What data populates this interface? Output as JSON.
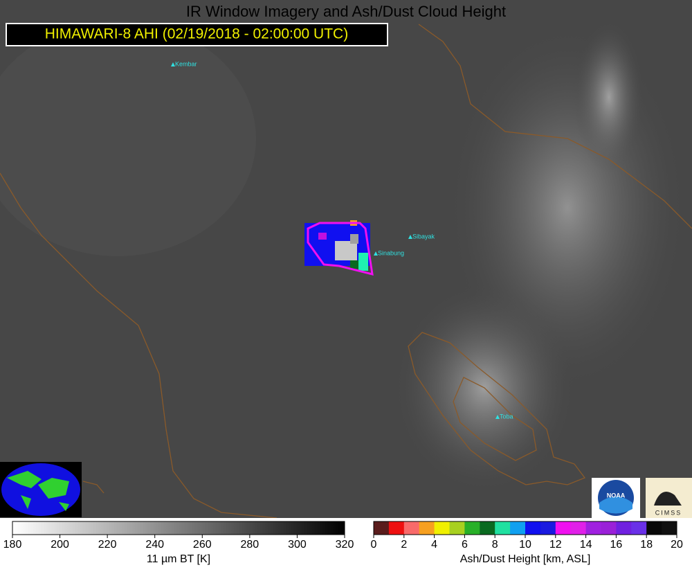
{
  "header": {
    "title": "IR Window Imagery and Ash/Dust Cloud Height",
    "subtitle": "HIMAWARI-8 AHI (02/19/2018 - 02:00:00 UTC)"
  },
  "volcanoes": [
    {
      "label": "Kembar"
    },
    {
      "label": "Sibayak"
    },
    {
      "label": "Sinabung"
    },
    {
      "label": "Toba"
    }
  ],
  "logos": {
    "noaa": "NOAA",
    "cimss": "CIMSS"
  },
  "colorbars": [
    {
      "label": "11 µm BT [K]",
      "ticks": [
        180,
        200,
        220,
        240,
        260,
        280,
        300,
        320
      ]
    },
    {
      "label": "Ash/Dust Height [km, ASL]",
      "ticks": [
        0,
        2,
        4,
        6,
        8,
        10,
        12,
        14,
        16,
        18,
        20
      ],
      "colors": [
        "#5a1c1c",
        "#ee1010",
        "#f86a6a",
        "#f7a020",
        "#f0f000",
        "#a8d020",
        "#28b028",
        "#0a6a20",
        "#20e0a0",
        "#10a0f0",
        "#1010f0",
        "#1a1ae0",
        "#f010f0",
        "#e020e8",
        "#a020e0",
        "#9a20d8",
        "#7020e0",
        "#6a30e8",
        "#080808",
        "#101010"
      ]
    }
  ]
}
